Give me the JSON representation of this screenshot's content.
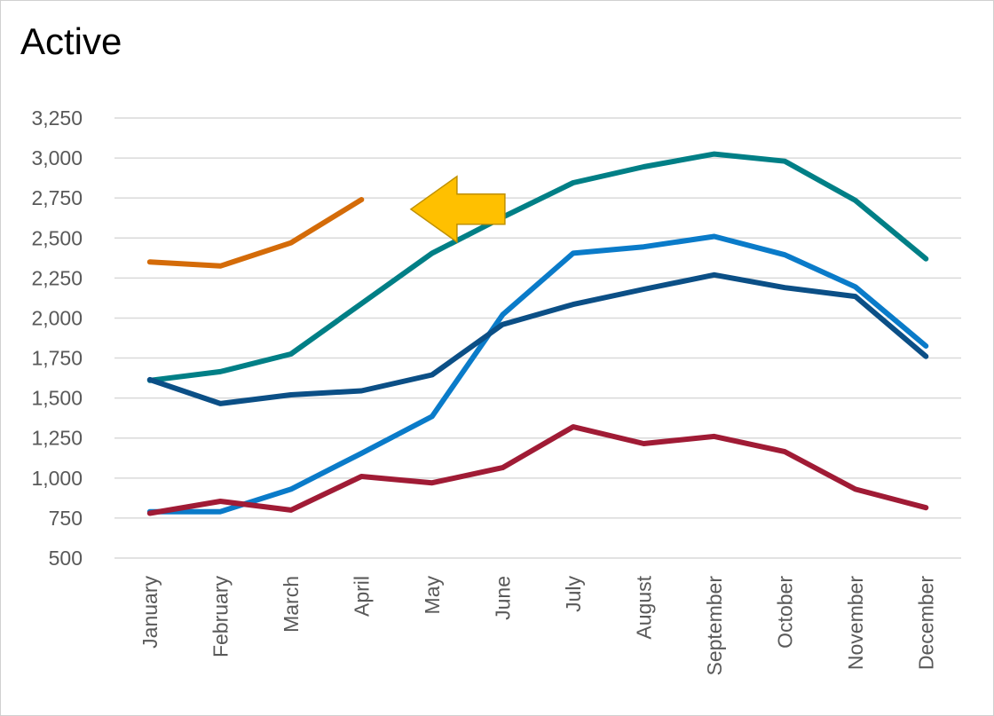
{
  "chart_data": {
    "type": "line",
    "title": "Active",
    "xlabel": "",
    "ylabel": "",
    "categories": [
      "January",
      "February",
      "March",
      "April",
      "May",
      "June",
      "July",
      "August",
      "September",
      "October",
      "November",
      "December"
    ],
    "ylim": [
      500,
      3250
    ],
    "yticks": [
      500,
      750,
      1000,
      1250,
      1500,
      1750,
      2000,
      2250,
      2500,
      2750,
      3000,
      3250
    ],
    "ytick_labels": [
      "500",
      "750",
      "1,000",
      "1,250",
      "1,500",
      "1,750",
      "2,000",
      "2,250",
      "2,500",
      "2,750",
      "3,000",
      "3,250"
    ],
    "grid": "horizontal",
    "legend": "none",
    "series": [
      {
        "color": "#d46b08",
        "values": [
          2350,
          2325,
          2470,
          2740,
          null,
          null,
          null,
          null,
          null,
          null,
          null,
          null
        ]
      },
      {
        "color": "#007f86",
        "values": [
          1610,
          1665,
          1775,
          2090,
          2405,
          2630,
          2845,
          2945,
          3025,
          2980,
          2735,
          2370
        ]
      },
      {
        "color": "#0a7bc9",
        "values": [
          790,
          790,
          930,
          1155,
          1385,
          2020,
          2405,
          2445,
          2510,
          2395,
          2195,
          1825
        ]
      },
      {
        "color": "#0b4f86",
        "values": [
          1615,
          1465,
          1520,
          1545,
          1645,
          1960,
          2085,
          2180,
          2270,
          2190,
          2135,
          1760
        ]
      },
      {
        "color": "#a01b35",
        "values": [
          780,
          855,
          800,
          1010,
          970,
          1065,
          1320,
          1215,
          1260,
          1165,
          930,
          815
        ]
      }
    ],
    "annotations": [
      {
        "type": "arrow",
        "direction": "left",
        "color": "#ffc000",
        "stroke": "#bf9000",
        "category_index": 3.7,
        "y_value": 2680
      }
    ]
  }
}
